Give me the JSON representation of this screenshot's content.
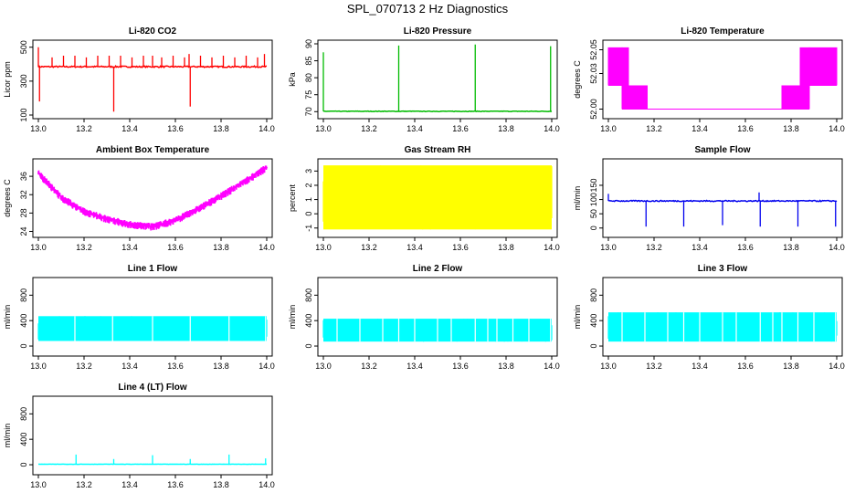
{
  "page": {
    "title": "SPL_070713  2 Hz Diagnostics"
  },
  "colors": {
    "red": "#ff0000",
    "green": "#00bb00",
    "magenta": "#ff00ff",
    "yellow": "#ffff00",
    "blue": "#0000ee",
    "cyan": "#00ffff",
    "axis": "#000000"
  },
  "chart_data": [
    {
      "id": "li820-co2",
      "type": "line",
      "title": "Li-820 CO2",
      "ylabel": "Licor ppm",
      "xlim": [
        13.0,
        14.0
      ],
      "ylim": [
        100,
        520
      ],
      "xticks": [
        "13.0",
        "13.2",
        "13.4",
        "13.6",
        "13.8",
        "14.0"
      ],
      "yticks": [
        {
          "v": 100,
          "t": "100"
        },
        {
          "v": 300,
          "t": "300"
        },
        {
          "v": 500,
          "t": "500"
        }
      ],
      "color": "red",
      "baseline": 385,
      "noise": 8,
      "spikes": [
        {
          "x": 13.0,
          "y": 500
        },
        {
          "x": 13.005,
          "y": 180
        },
        {
          "x": 13.06,
          "y": 440
        },
        {
          "x": 13.11,
          "y": 450
        },
        {
          "x": 13.16,
          "y": 450
        },
        {
          "x": 13.21,
          "y": 440
        },
        {
          "x": 13.26,
          "y": 450
        },
        {
          "x": 13.31,
          "y": 450
        },
        {
          "x": 13.33,
          "y": 120
        },
        {
          "x": 13.36,
          "y": 450
        },
        {
          "x": 13.41,
          "y": 440
        },
        {
          "x": 13.46,
          "y": 450
        },
        {
          "x": 13.5,
          "y": 450
        },
        {
          "x": 13.54,
          "y": 440
        },
        {
          "x": 13.59,
          "y": 450
        },
        {
          "x": 13.64,
          "y": 440
        },
        {
          "x": 13.66,
          "y": 460
        },
        {
          "x": 13.665,
          "y": 150
        },
        {
          "x": 13.71,
          "y": 450
        },
        {
          "x": 13.76,
          "y": 440
        },
        {
          "x": 13.81,
          "y": 450
        },
        {
          "x": 13.86,
          "y": 440
        },
        {
          "x": 13.91,
          "y": 450
        },
        {
          "x": 13.96,
          "y": 440
        },
        {
          "x": 13.99,
          "y": 460
        }
      ]
    },
    {
      "id": "li820-pressure",
      "type": "line",
      "title": "Li-820 Pressure",
      "ylabel": "kPa",
      "xlim": [
        13.0,
        14.0
      ],
      "ylim": [
        69,
        90
      ],
      "xticks": [
        "13.0",
        "13.2",
        "13.4",
        "13.6",
        "13.8",
        "14.0"
      ],
      "yticks": [
        {
          "v": 70,
          "t": "70"
        },
        {
          "v": 75,
          "t": "75"
        },
        {
          "v": 80,
          "t": "80"
        },
        {
          "v": 85,
          "t": "85"
        },
        {
          "v": 90,
          "t": "90"
        }
      ],
      "color": "green",
      "baseline": 70.1,
      "noise": 0.15,
      "spikes": [
        {
          "x": 13.0,
          "y": 87.5
        },
        {
          "x": 13.33,
          "y": 89.5
        },
        {
          "x": 13.665,
          "y": 89.8
        },
        {
          "x": 13.995,
          "y": 89.3
        }
      ]
    },
    {
      "id": "li820-temperature",
      "type": "step",
      "title": "Li-820 Temperature",
      "ylabel": "degrees C",
      "xlim": [
        13.0,
        14.0
      ],
      "ylim": [
        51.995,
        52.055
      ],
      "xticks": [
        "13.0",
        "13.2",
        "13.4",
        "13.6",
        "13.8",
        "14.0"
      ],
      "yticks": [
        {
          "v": 52.0,
          "t": "52.00"
        },
        {
          "v": 52.03,
          "t": "52.03"
        },
        {
          "v": 52.05,
          "t": "52.05"
        }
      ],
      "color": "magenta",
      "segments": [
        {
          "x0": 13.0,
          "x1": 13.06,
          "lo": 52.02,
          "hi": 52.052
        },
        {
          "x0": 13.06,
          "x1": 13.09,
          "lo": 52.0,
          "hi": 52.052
        },
        {
          "x0": 13.09,
          "x1": 13.17,
          "lo": 52.0,
          "hi": 52.02
        },
        {
          "x0": 13.17,
          "x1": 13.76,
          "lo": 52.0,
          "hi": 52.0
        },
        {
          "x0": 13.76,
          "x1": 13.84,
          "lo": 52.0,
          "hi": 52.02
        },
        {
          "x0": 13.84,
          "x1": 13.88,
          "lo": 52.0,
          "hi": 52.052
        },
        {
          "x0": 13.88,
          "x1": 14.0,
          "lo": 52.02,
          "hi": 52.052
        }
      ]
    },
    {
      "id": "ambient-box-temperature",
      "type": "line",
      "title": "Ambient Box Temperature",
      "ylabel": "degrees C",
      "xlim": [
        13.0,
        14.0
      ],
      "ylim": [
        23.5,
        39
      ],
      "xticks": [
        "13.0",
        "13.2",
        "13.4",
        "13.6",
        "13.8",
        "14.0"
      ],
      "yticks": [
        {
          "v": 24,
          "t": "24"
        },
        {
          "v": 28,
          "t": "28"
        },
        {
          "v": 32,
          "t": "32"
        },
        {
          "v": 36,
          "t": "36"
        }
      ],
      "color": "magenta",
      "noise": 1.0,
      "curve": [
        [
          13.0,
          36.8
        ],
        [
          13.1,
          31.5
        ],
        [
          13.2,
          28.4
        ],
        [
          13.3,
          26.8
        ],
        [
          13.4,
          25.6
        ],
        [
          13.5,
          25.1
        ],
        [
          13.6,
          26.5
        ],
        [
          13.7,
          29.0
        ],
        [
          13.8,
          31.8
        ],
        [
          13.9,
          34.8
        ],
        [
          14.0,
          38.0
        ]
      ]
    },
    {
      "id": "gas-stream-rh",
      "type": "line",
      "title": "Gas Stream RH",
      "ylabel": "percent",
      "xlim": [
        13.0,
        14.0
      ],
      "ylim": [
        -1.4,
        3.6
      ],
      "xticks": [
        "13.0",
        "13.2",
        "13.4",
        "13.6",
        "13.8",
        "14.0"
      ],
      "yticks": [
        {
          "v": -1,
          "t": "-1"
        },
        {
          "v": 0,
          "t": "0"
        },
        {
          "v": 1,
          "t": "1"
        },
        {
          "v": 2,
          "t": "2"
        },
        {
          "v": 3,
          "t": "3"
        }
      ],
      "color": "yellow",
      "band": {
        "lo": -1.1,
        "hi": 3.4
      }
    },
    {
      "id": "sample-flow",
      "type": "line",
      "title": "Sample Flow",
      "ylabel": "ml/min",
      "xlim": [
        13.0,
        14.0
      ],
      "ylim": [
        -20,
        230
      ],
      "xticks": [
        "13.0",
        "13.2",
        "13.4",
        "13.6",
        "13.8",
        "14.0"
      ],
      "yticks": [
        {
          "v": 0,
          "t": "0"
        },
        {
          "v": 50,
          "t": "50"
        },
        {
          "v": 100,
          "t": "100"
        },
        {
          "v": 150,
          "t": "150"
        }
      ],
      "color": "blue",
      "baseline": 95,
      "noise": 4,
      "spikes": [
        {
          "x": 13.0,
          "y": 120
        },
        {
          "x": 13.165,
          "y": 5
        },
        {
          "x": 13.33,
          "y": 5
        },
        {
          "x": 13.5,
          "y": 10
        },
        {
          "x": 13.66,
          "y": 125
        },
        {
          "x": 13.665,
          "y": 5
        },
        {
          "x": 13.83,
          "y": 5
        },
        {
          "x": 13.995,
          "y": 5
        }
      ]
    },
    {
      "id": "line-1-flow",
      "type": "line",
      "title": "Line 1 Flow",
      "ylabel": "ml/min",
      "xlim": [
        13.0,
        14.0
      ],
      "ylim": [
        -100,
        1020
      ],
      "xticks": [
        "13.0",
        "13.2",
        "13.4",
        "13.6",
        "13.8",
        "14.0"
      ],
      "yticks": [
        {
          "v": 0,
          "t": "0"
        },
        {
          "v": 400,
          "t": "400"
        },
        {
          "v": 800,
          "t": "800"
        }
      ],
      "color": "cyan",
      "band": {
        "lo": 80,
        "hi": 470
      },
      "gaps": [
        13.16,
        13.325,
        13.5,
        13.665,
        13.835,
        13.995
      ]
    },
    {
      "id": "line-2-flow",
      "type": "line",
      "title": "Line 2 Flow",
      "ylabel": "ml/min",
      "xlim": [
        13.0,
        14.0
      ],
      "ylim": [
        -100,
        1020
      ],
      "xticks": [
        "13.0",
        "13.2",
        "13.4",
        "13.6",
        "13.8",
        "14.0"
      ],
      "yticks": [
        {
          "v": 0,
          "t": "0"
        },
        {
          "v": 400,
          "t": "400"
        },
        {
          "v": 800,
          "t": "800"
        }
      ],
      "color": "cyan",
      "band": {
        "lo": 70,
        "hi": 430
      },
      "gaps": [
        13.06,
        13.16,
        13.26,
        13.33,
        13.4,
        13.5,
        13.56,
        13.665,
        13.72,
        13.76,
        13.83,
        13.9,
        13.995
      ]
    },
    {
      "id": "line-3-flow",
      "type": "line",
      "title": "Line 3 Flow",
      "ylabel": "ml/min",
      "xlim": [
        13.0,
        14.0
      ],
      "ylim": [
        -100,
        1020
      ],
      "xticks": [
        "13.0",
        "13.2",
        "13.4",
        "13.6",
        "13.8",
        "14.0"
      ],
      "yticks": [
        {
          "v": 0,
          "t": "0"
        },
        {
          "v": 400,
          "t": "400"
        },
        {
          "v": 800,
          "t": "800"
        }
      ],
      "color": "cyan",
      "band": {
        "lo": 70,
        "hi": 530
      },
      "gaps": [
        13.06,
        13.16,
        13.26,
        13.33,
        13.4,
        13.5,
        13.56,
        13.665,
        13.72,
        13.76,
        13.83,
        13.9,
        13.995
      ]
    },
    {
      "id": "line-4-lt-flow",
      "type": "line",
      "title": "Line 4 (LT) Flow",
      "ylabel": "ml/min",
      "xlim": [
        13.0,
        14.0
      ],
      "ylim": [
        -100,
        1020
      ],
      "xticks": [
        "13.0",
        "13.2",
        "13.4",
        "13.6",
        "13.8",
        "14.0"
      ],
      "yticks": [
        {
          "v": 0,
          "t": "0"
        },
        {
          "v": 400,
          "t": "400"
        },
        {
          "v": 800,
          "t": "800"
        }
      ],
      "color": "cyan",
      "baseline": 8,
      "noise": 3,
      "spikes": [
        {
          "x": 13.165,
          "y": 160
        },
        {
          "x": 13.33,
          "y": 90
        },
        {
          "x": 13.5,
          "y": 150
        },
        {
          "x": 13.665,
          "y": 90
        },
        {
          "x": 13.835,
          "y": 160
        },
        {
          "x": 13.995,
          "y": 100
        }
      ]
    }
  ]
}
